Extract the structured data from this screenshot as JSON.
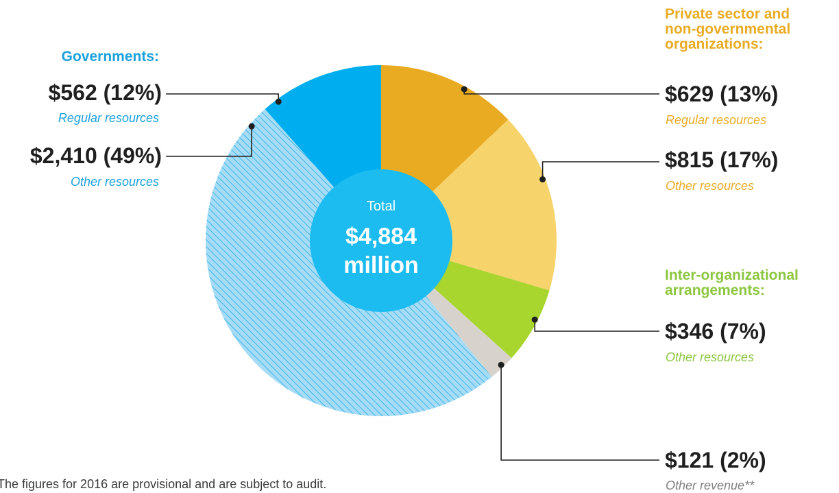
{
  "chart_data": {
    "type": "pie",
    "total": {
      "label": "Total",
      "amount": "$4,884",
      "unit": "million"
    },
    "slices": [
      {
        "group": "private",
        "value": 629,
        "label": "$629 (13%)",
        "sublabel": "Regular resources",
        "color": "#e9ab22",
        "hatched": false
      },
      {
        "group": "private",
        "value": 815,
        "label": "$815 (17%)",
        "sublabel": "Other resources",
        "color": "#f7d36c",
        "hatched": false
      },
      {
        "group": "inter",
        "value": 346,
        "label": "$346 (7%)",
        "sublabel": "Other resources",
        "color": "#a8d52e",
        "hatched": false
      },
      {
        "group": "other",
        "value": 121,
        "label": "$121 (2%)",
        "sublabel": "Other revenue**",
        "color": "#d7d3cc",
        "hatched": false
      },
      {
        "group": "governments",
        "value": 2410,
        "label": "$2,410 (49%)",
        "sublabel": "Other resources",
        "color": "#a6dcf5",
        "hatched": true
      },
      {
        "group": "governments",
        "value": 562,
        "label": "$562 (12%)",
        "sublabel": "Regular resources",
        "color": "#00aeef",
        "hatched": false
      }
    ],
    "groups": {
      "governments": {
        "title": "Governments:",
        "color": "#1ba1dc"
      },
      "private": {
        "title_lines": [
          "Private sector and",
          "non-governmental",
          "organizations:"
        ],
        "color": "#e9ab22"
      },
      "inter": {
        "title_lines": [
          "Inter-organizational",
          "arrangements:"
        ],
        "color": "#8cc63f"
      },
      "other": {
        "color": "#808080"
      }
    },
    "center_color": "#1dbcf0"
  },
  "footnote": "The figures for 2016 are provisional and are subject to audit."
}
